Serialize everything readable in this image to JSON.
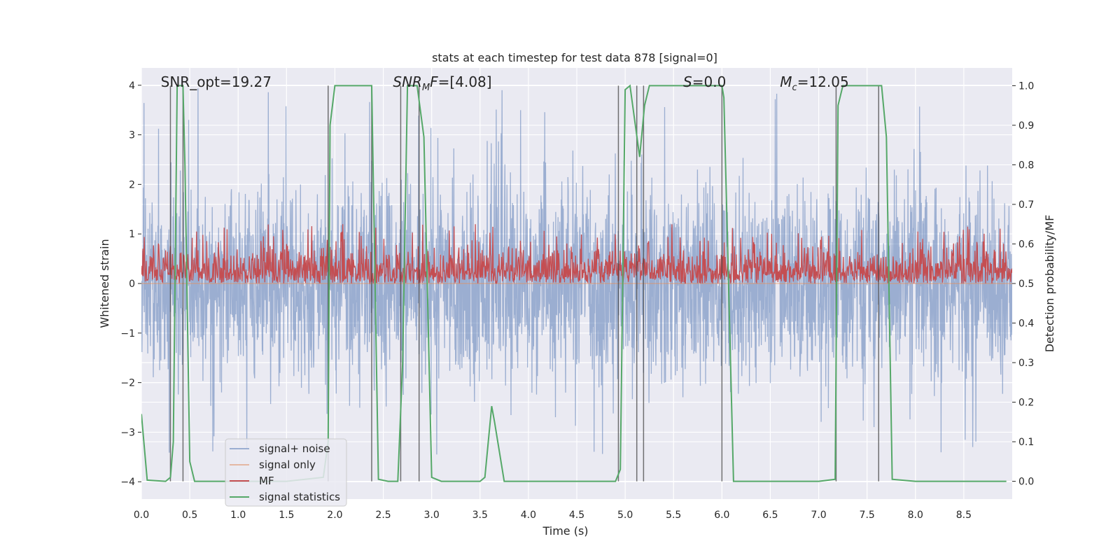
{
  "chart_data": {
    "type": "line",
    "title": "stats at each timestep for test data 878 [signal=0]",
    "xlabel": "Time (s)",
    "ylabel_left": "Whitened strain",
    "ylabel_right": "Detection probability/MF",
    "xlim": [
      0.0,
      9.0
    ],
    "ylim_left": [
      -4.35,
      4.35
    ],
    "ylim_right": [
      -0.045,
      1.045
    ],
    "xticks": [
      0.0,
      0.5,
      1.0,
      1.5,
      2.0,
      2.5,
      3.0,
      3.5,
      4.0,
      4.5,
      5.0,
      5.5,
      6.0,
      6.5,
      7.0,
      7.5,
      8.0,
      8.5
    ],
    "xtick_labels": [
      "0.0",
      "0.5",
      "1.0",
      "1.5",
      "2.0",
      "2.5",
      "3.0",
      "3.5",
      "4.0",
      "4.5",
      "5.0",
      "5.5",
      "6.0",
      "6.5",
      "7.0",
      "7.5",
      "8.0",
      "8.5"
    ],
    "yticks_left": [
      4,
      3,
      2,
      1,
      0,
      -1,
      -2,
      -3,
      -4
    ],
    "yticks_left_labels": [
      "4",
      "3",
      "2",
      "1",
      "0",
      "−1",
      "−2",
      "−3",
      "−4"
    ],
    "yticks_right": [
      1.0,
      0.9,
      0.8,
      0.7,
      0.6,
      0.5,
      0.4,
      0.3,
      0.2,
      0.1,
      0.0
    ],
    "yticks_right_labels": [
      "1.0",
      "0.9",
      "0.8",
      "0.7",
      "0.6",
      "0.5",
      "0.4",
      "0.3",
      "0.2",
      "0.1",
      "0.0"
    ],
    "grid": true,
    "legend_position": "lower-left",
    "annotations": [
      {
        "id": "snr-opt",
        "html": "SNR_opt=19.27",
        "x": 0.2
      },
      {
        "id": "snr-mf",
        "html": "<tspan font-style=\"italic\">SNR</tspan><tspan font-style=\"italic\" font-size=\"13\" dy=\"5\">M</tspan><tspan font-style=\"italic\" dy=\"-5\">F</tspan>=[4.08]",
        "x": 2.6
      },
      {
        "id": "s-value",
        "html": "<tspan font-style=\"italic\">S</tspan>=0.0",
        "x": 5.6
      },
      {
        "id": "mc-value",
        "html": "<tspan font-style=\"italic\">M</tspan><tspan font-style=\"italic\" font-size=\"13\" dy=\"5\">c</tspan><tspan dy=\"-5\">=12.05</tspan>",
        "x": 6.6
      }
    ],
    "series": [
      {
        "name": "signal+ noise",
        "axis": "left",
        "color": "#4c72b0",
        "opacity": 0.5,
        "style": "dense noise trace",
        "amplitude_envelope": [
          -4.0,
          4.0
        ],
        "typical_range": [
          -1.6,
          1.6
        ]
      },
      {
        "name": "signal only",
        "axis": "left",
        "color": "#dd8452",
        "opacity": 0.5,
        "x": [
          0.0,
          9.0
        ],
        "values": [
          0.0,
          0.0
        ]
      },
      {
        "name": "MF",
        "axis": "right",
        "color": "#c44e52",
        "style": "dense noise trace",
        "typical_range": [
          0.5,
          0.62
        ],
        "peak_max": 0.65
      },
      {
        "name": "signal statistics",
        "axis": "right",
        "color": "#55a868",
        "x": [
          0.0,
          0.06,
          0.25,
          0.3,
          0.33,
          0.37,
          0.43,
          0.45,
          0.5,
          0.55,
          1.0,
          1.5,
          1.88,
          1.93,
          1.95,
          2.0,
          2.05,
          2.3,
          2.38,
          2.45,
          2.55,
          2.65,
          2.7,
          2.75,
          2.85,
          2.92,
          3.0,
          3.1,
          3.5,
          3.55,
          3.62,
          3.65,
          3.75,
          4.0,
          4.5,
          4.9,
          4.95,
          5.0,
          5.05,
          5.15,
          5.2,
          5.25,
          5.3,
          5.5,
          6.0,
          6.02,
          6.12,
          6.5,
          7.0,
          7.17,
          7.2,
          7.25,
          7.3,
          7.55,
          7.65,
          7.7,
          7.76,
          8.0,
          8.5,
          8.94
        ],
        "values": [
          0.17,
          0.003,
          0.0,
          0.01,
          0.1,
          1.0,
          1.0,
          0.8,
          0.05,
          0.0,
          0.0,
          0.0,
          0.01,
          0.1,
          0.9,
          1.0,
          1.0,
          1.0,
          1.0,
          0.005,
          0.0,
          0.0,
          0.3,
          1.0,
          1.0,
          0.87,
          0.01,
          0.0,
          0.0,
          0.01,
          0.19,
          0.15,
          0.0,
          0.0,
          0.0,
          0.0,
          0.03,
          0.99,
          1.0,
          0.82,
          0.95,
          1.0,
          1.0,
          1.0,
          1.0,
          0.97,
          0.0,
          0.0,
          0.0,
          0.005,
          0.95,
          1.0,
          1.0,
          1.0,
          1.0,
          0.87,
          0.005,
          0.0,
          0.0,
          0.0
        ]
      }
    ],
    "vertical_lines": [
      0.3,
      0.43,
      1.93,
      2.38,
      2.68,
      2.87,
      4.93,
      5.12,
      5.19,
      6.0,
      7.18,
      7.62
    ]
  }
}
